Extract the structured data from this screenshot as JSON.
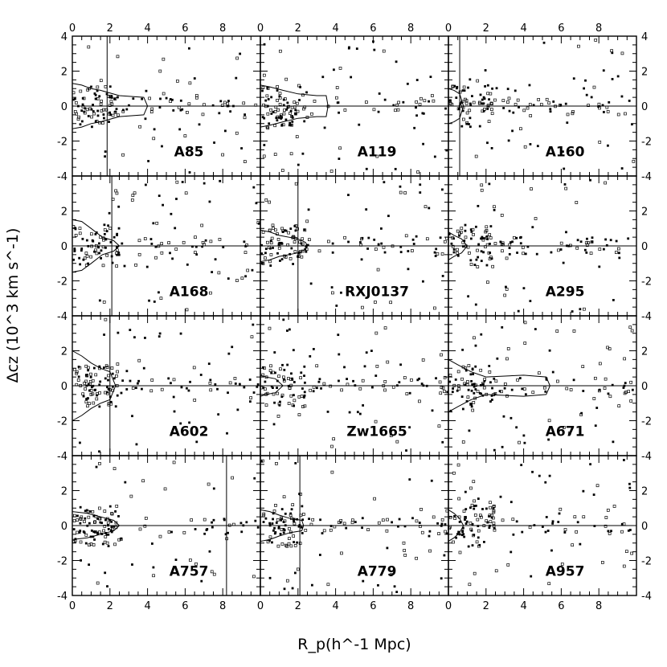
{
  "chart_data": {
    "type": "scatter",
    "grid": false,
    "layout": "4x3 panel grid",
    "xlabel": "R_p(h^-1 Mpc)",
    "ylabel": "Δcz (10^3 km s^-1)",
    "xlim": [
      0,
      10
    ],
    "ylim": [
      -4,
      4
    ],
    "xticks": [
      "0",
      "2",
      "4",
      "6",
      "8"
    ],
    "yticks": [
      "-4",
      "-2",
      "0",
      "2",
      "4"
    ],
    "panels": [
      {
        "name": "A85",
        "rcut": 1.85,
        "caustic": [
          [
            0,
            1.3
          ],
          [
            0.5,
            1.2
          ],
          [
            1.0,
            1.0
          ],
          [
            1.5,
            0.9
          ],
          [
            2.5,
            0.6
          ],
          [
            3.8,
            0.5
          ],
          [
            4.0,
            0
          ]
        ]
      },
      {
        "name": "A119",
        "rcut": 0.0,
        "caustic": [
          [
            0,
            1.2
          ],
          [
            0.5,
            1.1
          ],
          [
            1.2,
            0.9
          ],
          [
            2.0,
            0.7
          ],
          [
            3.0,
            0.6
          ],
          [
            3.5,
            0.6
          ],
          [
            3.6,
            0
          ]
        ]
      },
      {
        "name": "A160",
        "rcut": 0.6,
        "caustic": [
          [
            0,
            1.0
          ],
          [
            0.3,
            0.9
          ],
          [
            0.6,
            0.7
          ],
          [
            0.8,
            0
          ]
        ]
      },
      {
        "name": "A168",
        "rcut": 2.1,
        "caustic": [
          [
            0,
            1.5
          ],
          [
            0.5,
            1.4
          ],
          [
            1.0,
            1.0
          ],
          [
            1.6,
            0.5
          ],
          [
            2.2,
            0.3
          ],
          [
            2.5,
            0
          ]
        ]
      },
      {
        "name": "RXJ0137",
        "rcut": 2.0,
        "caustic": [
          [
            0,
            0.9
          ],
          [
            0.5,
            0.8
          ],
          [
            1.0,
            0.6
          ],
          [
            2.0,
            0.4
          ],
          [
            2.4,
            0.2
          ],
          [
            2.5,
            0
          ]
        ]
      },
      {
        "name": "A295",
        "rcut": 0.0,
        "caustic": [
          [
            0,
            0.8
          ],
          [
            0.3,
            0.6
          ],
          [
            0.7,
            0.4
          ],
          [
            1.0,
            0
          ]
        ]
      },
      {
        "name": "A602",
        "rcut": 2.0,
        "caustic": [
          [
            0,
            2.0
          ],
          [
            0.5,
            1.7
          ],
          [
            1.0,
            1.3
          ],
          [
            1.5,
            1.0
          ],
          [
            2.0,
            0.8
          ],
          [
            2.3,
            0
          ]
        ]
      },
      {
        "name": "Zw1665",
        "rcut": 0.0,
        "caustic": [
          [
            0,
            0.6
          ],
          [
            0.3,
            0.5
          ],
          [
            0.8,
            0.4
          ],
          [
            1.2,
            0
          ]
        ]
      },
      {
        "name": "A671",
        "rcut": 0.0,
        "caustic": [
          [
            0,
            1.5
          ],
          [
            0.5,
            1.2
          ],
          [
            1.2,
            0.8
          ],
          [
            2.0,
            0.5
          ],
          [
            4.0,
            0.6
          ],
          [
            5.2,
            0.5
          ],
          [
            5.4,
            0
          ]
        ]
      },
      {
        "name": "A757",
        "rcut": 8.2,
        "caustic": [
          [
            0,
            0.8
          ],
          [
            0.8,
            0.7
          ],
          [
            1.5,
            0.5
          ],
          [
            2.2,
            0.3
          ],
          [
            2.5,
            0
          ]
        ]
      },
      {
        "name": "A779",
        "rcut": 2.1,
        "caustic": [
          [
            0,
            0.9
          ],
          [
            0.5,
            0.8
          ],
          [
            1.0,
            0.6
          ],
          [
            1.6,
            0.4
          ],
          [
            2.2,
            0.3
          ],
          [
            2.3,
            0
          ]
        ]
      },
      {
        "name": "A957",
        "rcut": 0.0,
        "caustic": [
          [
            0,
            0.9
          ],
          [
            0.3,
            0.7
          ],
          [
            0.6,
            0.4
          ],
          [
            0.8,
            0
          ]
        ]
      }
    ]
  }
}
